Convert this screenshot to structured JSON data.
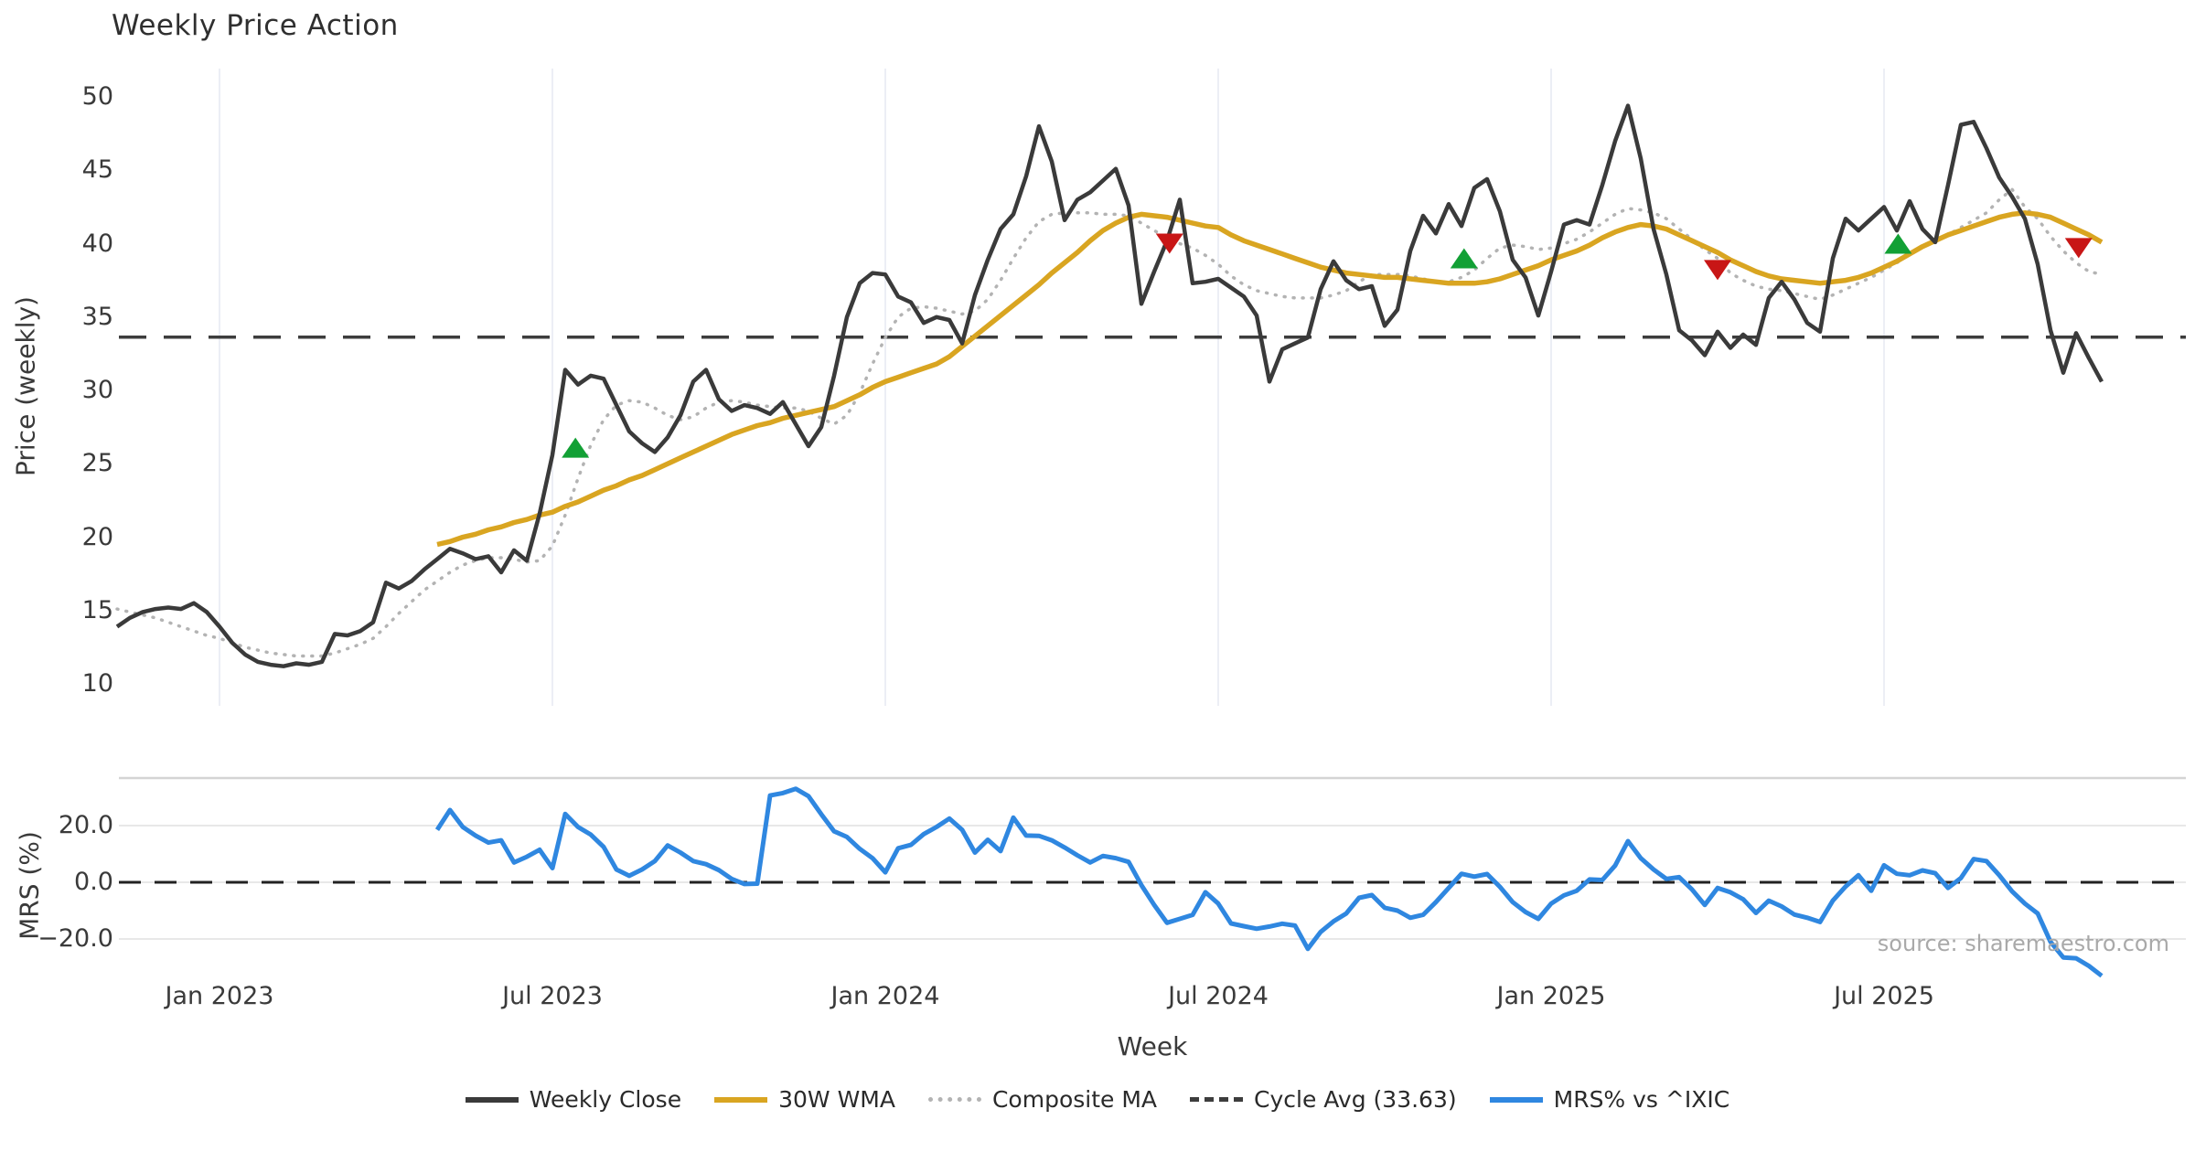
{
  "title": "Weekly Price Action",
  "main_panel": {
    "ylabel": "Price (weekly)",
    "yticks": [
      50,
      45,
      40,
      35,
      30,
      25,
      20,
      15,
      10
    ]
  },
  "mrs_panel": {
    "ylabel": "MRS (%)",
    "yticks": [
      "20.0",
      "0.0",
      "−20.0"
    ],
    "ytick_values": [
      20,
      0,
      -20
    ]
  },
  "xlabel": "Week",
  "source": "source: sharemaestro.com",
  "colors": {
    "close": "#3a3a3a",
    "wma": "#d9a521",
    "composite": "#b3b3b3",
    "cycle_avg": "#3d3d3d",
    "mrs": "#2f87e0",
    "buy": "#12a035",
    "sell": "#c81616",
    "grid": "#eceef5",
    "panel_border": "#d4d4d4",
    "hgrid": "#e8e8e8"
  },
  "legend": [
    {
      "label": "Weekly Close",
      "style": "solid",
      "color": "#3a3a3a"
    },
    {
      "label": "30W WMA",
      "style": "solid",
      "color": "#d9a521"
    },
    {
      "label": "Composite MA",
      "style": "dotted",
      "color": "#b3b3b3"
    },
    {
      "label": "Cycle Avg (33.63)",
      "style": "dashed",
      "color": "#3d3d3d"
    },
    {
      "label": "MRS% vs ^IXIC",
      "style": "solid",
      "color": "#2f87e0"
    }
  ],
  "chart_data": {
    "type": "line",
    "x_unit": "weeks",
    "x_ticks": [
      {
        "label": "Jan 2023",
        "idx": 8
      },
      {
        "label": "Jul 2023",
        "idx": 34
      },
      {
        "label": "Jan 2024",
        "idx": 60
      },
      {
        "label": "Jul 2024",
        "idx": 86
      },
      {
        "label": "Jan 2025",
        "idx": 112
      },
      {
        "label": "Jul 2025",
        "idx": 138
      }
    ],
    "main_ylim": [
      10,
      50
    ],
    "mrs_ylim": [
      -35,
      36
    ],
    "cycle_avg": 33.63,
    "series": {
      "weekly_close": {
        "start": 0,
        "values": [
          13.9,
          14.5,
          14.9,
          15.1,
          15.2,
          15.1,
          15.5,
          14.9,
          13.9,
          12.8,
          12.0,
          11.5,
          11.3,
          11.2,
          11.4,
          11.3,
          11.5,
          13.4,
          13.3,
          13.6,
          14.2,
          16.9,
          16.5,
          17.0,
          17.8,
          18.5,
          19.2,
          18.9,
          18.5,
          18.7,
          17.6,
          19.1,
          18.4,
          21.6,
          25.6,
          31.4,
          30.4,
          31.0,
          30.8,
          29.0,
          27.2,
          26.4,
          25.8,
          26.8,
          28.3,
          30.6,
          31.4,
          29.4,
          28.6,
          29.0,
          28.8,
          28.4,
          29.2,
          27.7,
          26.2,
          27.5,
          31.0,
          35.0,
          37.3,
          38.0,
          37.9,
          36.4,
          36.0,
          34.6,
          35.0,
          34.8,
          33.2,
          36.5,
          38.9,
          41.0,
          42.0,
          44.6,
          48.0,
          45.6,
          41.6,
          43.0,
          43.5,
          44.3,
          45.1,
          42.6,
          35.9,
          38.1,
          40.2,
          43.0,
          37.3,
          37.4,
          37.6,
          37.0,
          36.4,
          35.1,
          30.6,
          32.8,
          33.2,
          33.6,
          36.9,
          38.8,
          37.5,
          36.9,
          37.1,
          34.4,
          35.5,
          39.5,
          41.9,
          40.7,
          42.7,
          41.2,
          43.8,
          44.4,
          42.2,
          38.9,
          37.7,
          35.1,
          38.1,
          41.3,
          41.6,
          41.3,
          44.0,
          47.0,
          49.4,
          45.8,
          41.0,
          37.9,
          34.1,
          33.4,
          32.4,
          34.0,
          32.9,
          33.8,
          33.1,
          36.3,
          37.4,
          36.2,
          34.6,
          34.0,
          39.0,
          41.7,
          40.9,
          41.7,
          42.5,
          40.9,
          42.9,
          41.0,
          40.1,
          44.0,
          48.1,
          48.3,
          46.5,
          44.5,
          43.2,
          41.7,
          38.6,
          34.1,
          31.2,
          33.9,
          32.2,
          30.6
        ]
      },
      "wma_30w": {
        "start": 25,
        "values": [
          19.5,
          19.7,
          20.0,
          20.2,
          20.5,
          20.7,
          21.0,
          21.2,
          21.5,
          21.7,
          22.1,
          22.4,
          22.8,
          23.2,
          23.5,
          23.9,
          24.2,
          24.6,
          25.0,
          25.4,
          25.8,
          26.2,
          26.6,
          27.0,
          27.3,
          27.6,
          27.8,
          28.1,
          28.3,
          28.5,
          28.7,
          28.9,
          29.3,
          29.7,
          30.2,
          30.6,
          30.9,
          31.2,
          31.5,
          31.8,
          32.3,
          33.0,
          33.7,
          34.4,
          35.1,
          35.8,
          36.5,
          37.2,
          38.0,
          38.7,
          39.4,
          40.2,
          40.9,
          41.4,
          41.8,
          42.0,
          41.9,
          41.8,
          41.6,
          41.4,
          41.2,
          41.1,
          40.6,
          40.2,
          39.9,
          39.6,
          39.3,
          39.0,
          38.7,
          38.4,
          38.2,
          38.0,
          37.9,
          37.8,
          37.7,
          37.7,
          37.6,
          37.5,
          37.4,
          37.3,
          37.3,
          37.3,
          37.4,
          37.6,
          37.9,
          38.2,
          38.5,
          38.9,
          39.2,
          39.5,
          39.9,
          40.4,
          40.8,
          41.1,
          41.3,
          41.2,
          41.0,
          40.6,
          40.2,
          39.8,
          39.4,
          38.9,
          38.5,
          38.1,
          37.8,
          37.6,
          37.5,
          37.4,
          37.3,
          37.4,
          37.5,
          37.7,
          38.0,
          38.4,
          38.8,
          39.3,
          39.8,
          40.2,
          40.6,
          40.9,
          41.2,
          41.5,
          41.8,
          42.0,
          42.1,
          42.0,
          41.8,
          41.4,
          41.0,
          40.6,
          40.1
        ]
      },
      "composite_ma": {
        "start": 0,
        "values": [
          15.1,
          14.9,
          14.7,
          14.5,
          14.2,
          13.9,
          13.6,
          13.3,
          13.1,
          12.8,
          12.5,
          12.3,
          12.1,
          12.0,
          11.9,
          11.9,
          11.9,
          12.1,
          12.4,
          12.7,
          13.1,
          13.9,
          14.8,
          15.6,
          16.4,
          17.0,
          17.6,
          18.1,
          18.4,
          18.6,
          18.6,
          18.5,
          18.3,
          18.4,
          19.4,
          21.5,
          24.0,
          26.3,
          28.0,
          29.0,
          29.3,
          29.2,
          28.8,
          28.3,
          28.0,
          28.2,
          28.8,
          29.2,
          29.3,
          29.2,
          29.0,
          28.9,
          28.8,
          28.8,
          28.6,
          28.1,
          27.7,
          28.3,
          29.8,
          31.8,
          33.6,
          35.0,
          35.6,
          35.7,
          35.6,
          35.4,
          35.2,
          35.4,
          36.2,
          37.5,
          39.0,
          40.4,
          41.5,
          42.0,
          42.1,
          42.1,
          42.1,
          42.0,
          42.0,
          41.9,
          41.4,
          40.9,
          40.4,
          40.0,
          39.7,
          39.2,
          38.6,
          37.8,
          37.2,
          36.8,
          36.6,
          36.4,
          36.3,
          36.3,
          36.3,
          36.5,
          36.8,
          37.4,
          37.9,
          37.9,
          37.9,
          37.8,
          37.6,
          37.4,
          37.4,
          37.7,
          38.2,
          39.0,
          39.7,
          39.9,
          39.8,
          39.6,
          39.7,
          40.0,
          40.3,
          40.8,
          41.4,
          42.0,
          42.4,
          42.3,
          42.1,
          41.7,
          41.0,
          40.3,
          39.6,
          39.0,
          38.0,
          37.5,
          37.1,
          36.9,
          36.8,
          36.6,
          36.4,
          36.2,
          36.5,
          36.9,
          37.3,
          37.7,
          38.2,
          38.7,
          39.3,
          39.8,
          40.2,
          40.6,
          41.1,
          41.6,
          42.1,
          43.0,
          43.7,
          42.5,
          41.7,
          40.5,
          39.5,
          38.7,
          38.1,
          37.9
        ]
      },
      "mrs_pct": {
        "start": 25,
        "values": [
          18.5,
          25.5,
          19.5,
          16.5,
          14.0,
          14.8,
          7.0,
          9.0,
          11.5,
          5.0,
          24.1,
          19.5,
          16.8,
          12.5,
          4.5,
          2.3,
          4.5,
          7.5,
          13.0,
          10.5,
          7.5,
          6.4,
          4.3,
          1.2,
          -0.6,
          -0.5,
          30.6,
          31.5,
          33.0,
          30.4,
          24.0,
          18.0,
          16.0,
          11.8,
          8.5,
          3.5,
          12.0,
          13.2,
          17.0,
          19.5,
          22.5,
          18.5,
          10.5,
          15.0,
          11.0,
          22.8,
          16.5,
          16.4,
          14.8,
          12.3,
          9.5,
          7.0,
          9.3,
          8.5,
          7.2,
          -1.0,
          -8.0,
          -14.3,
          -12.9,
          -11.5,
          -3.5,
          -7.5,
          -14.5,
          -15.5,
          -16.4,
          -15.6,
          -14.6,
          -15.3,
          -23.5,
          -17.5,
          -13.8,
          -11.0,
          -5.5,
          -4.5,
          -9.0,
          -10.0,
          -12.5,
          -11.5,
          -7.0,
          -2.0,
          3.0,
          2.0,
          2.9,
          -1.6,
          -7.0,
          -10.5,
          -12.9,
          -7.5,
          -4.6,
          -3.0,
          1.0,
          0.8,
          5.9,
          14.5,
          8.5,
          4.5,
          1.2,
          1.8,
          -2.5,
          -8.0,
          -2.0,
          -3.5,
          -6.0,
          -10.8,
          -6.5,
          -8.5,
          -11.4,
          -12.5,
          -14.0,
          -6.5,
          -1.5,
          2.5,
          -3.0,
          6.0,
          3.0,
          2.5,
          4.2,
          3.2,
          -2.0,
          1.5,
          8.2,
          7.5,
          2.5,
          -3.2,
          -7.5,
          -11.0,
          -21.0,
          -26.5,
          -26.8,
          -29.5,
          -33.0
        ]
      }
    },
    "markers": {
      "buy": [
        {
          "i": 35.8,
          "v": 26.1
        },
        {
          "i": 105.2,
          "v": 39.0
        },
        {
          "i": 139.1,
          "v": 40.0
        }
      ],
      "sell": [
        {
          "i": 82.2,
          "v": 40.0
        },
        {
          "i": 125.0,
          "v": 38.2
        },
        {
          "i": 153.2,
          "v": 39.7
        }
      ]
    }
  }
}
